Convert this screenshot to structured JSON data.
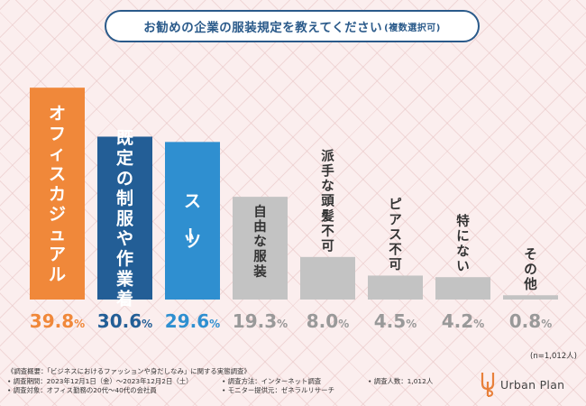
{
  "title": {
    "main": "お勧めの企業の服装規定を教えてください",
    "sub": "(複数選択可)"
  },
  "chart_data": {
    "type": "bar",
    "title": "お勧めの企業の服装規定を教えてください(複数選択可)",
    "categories": [
      "オフィスカジュアル",
      "既定の制服や作業着",
      "スーツ",
      "自由な服装",
      "派手な頭髪不可",
      "ピアス不可",
      "特にない",
      "その他"
    ],
    "values": [
      39.8,
      30.6,
      29.6,
      19.3,
      8.0,
      4.5,
      4.2,
      0.8
    ],
    "value_labels": [
      "39.8",
      "30.6",
      "29.6",
      "19.3",
      "8.0",
      "4.5",
      "4.2",
      "0.8"
    ],
    "unit": "%",
    "colors": [
      "#f0883a",
      "#235e96",
      "#2f8fd0",
      "#c3c3c3",
      "#c3c3c3",
      "#c3c3c3",
      "#c3c3c3",
      "#c3c3c3"
    ],
    "label_colors": [
      "#f0883a",
      "#235e96",
      "#2f8fd0",
      "#999999",
      "#999999",
      "#999999",
      "#999999",
      "#999999"
    ],
    "ylim": [
      0,
      40
    ],
    "sample_note": "(n=1,012人)",
    "xlabel": "",
    "ylabel": ""
  },
  "notes": {
    "survey_summary": "《調査概要：「ビジネスにおけるファッションや身だしなみ」に関する実態調査》",
    "period": "• 調査期間：2023年12月1日（金）〜2023年12月2日（土）",
    "method": "• 調査方法：インターネット調査",
    "count": "• 調査人数：1,012人",
    "target": "• 調査対象：オフィス勤務の20代〜40代の会社員",
    "provider": "• モニター提供元：ゼネラルリサーチ"
  },
  "logo": {
    "text": "Urban Plan"
  }
}
